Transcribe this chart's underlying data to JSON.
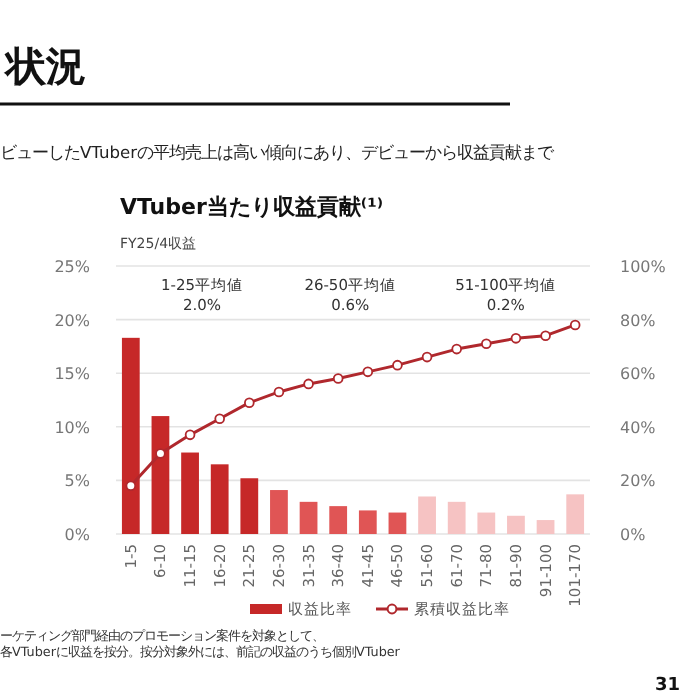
{
  "chart_data": {
    "type": "bar",
    "title": "VTuber当たり収益貢献⁽¹⁾",
    "subtitle": "FY25/4収益",
    "annotations": [
      "状況",
      "ビューしたVTuberの平均売上は高い傾向にあり、デビューから収益貢献まで",
      "ーケティング部門経由のプロモーション案件を対象として、各VTuberに収益を按分。按分対象外には、前記の収益のうち個別VTuber",
      "31",
      "1-25平均値\n2.0%",
      "26-50平均値\n0.6%",
      "51-100平均値\n0.2%"
    ],
    "categories": [
      "1-5",
      "6-10",
      "11-15",
      "16-20",
      "21-25",
      "26-30",
      "31-35",
      "36-40",
      "41-45",
      "46-50",
      "51-60",
      "61-70",
      "71-80",
      "81-90",
      "91-100",
      "101-170"
    ],
    "series": [
      {
        "name": "収益比率",
        "type": "bar",
        "color": "#c62828",
        "colors": [
          "#c62828",
          "#c62828",
          "#c62828",
          "#c62828",
          "#c62828",
          "#e05555",
          "#e05555",
          "#e05555",
          "#e05555",
          "#e05555",
          "#f6c3c3",
          "#f6c3c3",
          "#f6c3c3",
          "#f6c3c3",
          "#f6c3c3",
          "#f6c3c3"
        ],
        "values": [
          18.3,
          11.0,
          7.6,
          6.5,
          5.2,
          4.1,
          3.0,
          2.6,
          2.2,
          2.0,
          3.5,
          3.0,
          2.0,
          1.7,
          1.3,
          3.7
        ]
      },
      {
        "name": "累積収益比率",
        "type": "line",
        "axis": "y2",
        "color": "#b0282d",
        "marker": "circle",
        "values": [
          18,
          30,
          37,
          43,
          49,
          53,
          56,
          58,
          60.5,
          63,
          66,
          69,
          71,
          73,
          74,
          78
        ]
      }
    ],
    "ylim": [
      0,
      25
    ],
    "yticks": [
      {
        "value": 0,
        "label": "0%"
      },
      {
        "value": 5,
        "label": "5%"
      },
      {
        "value": 10,
        "label": "10%"
      },
      {
        "value": 15,
        "label": "15%"
      },
      {
        "value": 20,
        "label": "20%"
      },
      {
        "value": 25,
        "label": "25%"
      }
    ],
    "y2lim": [
      0,
      100
    ],
    "y2ticks": [
      {
        "value": 0,
        "label": "0%"
      },
      {
        "value": 20,
        "label": "20%"
      },
      {
        "value": 40,
        "label": "40%"
      },
      {
        "value": 60,
        "label": "60%"
      },
      {
        "value": 80,
        "label": "80%"
      },
      {
        "value": 100,
        "label": "100%"
      }
    ],
    "grid": "y",
    "legend": "bottom"
  }
}
